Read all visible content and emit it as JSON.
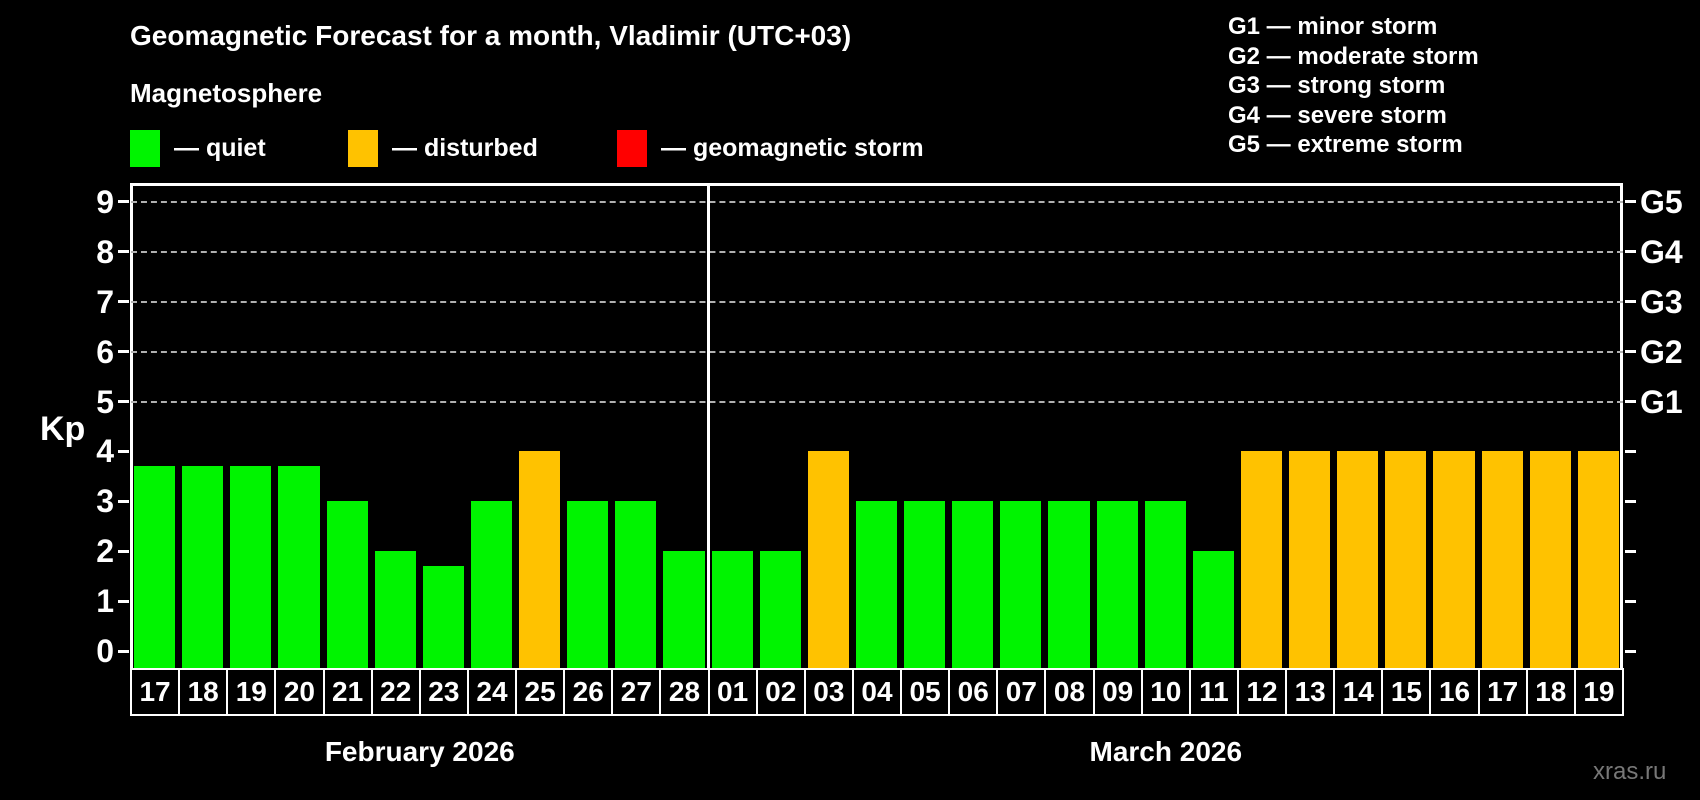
{
  "title": "Geomagnetic Forecast for a month, Vladimir (UTC+03)",
  "subtitle": "Magnetosphere",
  "legend": {
    "items": [
      {
        "status": "quiet",
        "label": "— quiet",
        "color": "#00f400"
      },
      {
        "status": "disturbed",
        "label": "— disturbed",
        "color": "#ffc200"
      },
      {
        "status": "storm",
        "label": "— geomagnetic storm",
        "color": "#ff0000"
      }
    ]
  },
  "g_legend": [
    "G1 — minor storm",
    "G2 — moderate storm",
    "G3 — strong storm",
    "G4 — severe storm",
    "G5 — extreme storm"
  ],
  "watermark": "xras.ru",
  "chart_data": {
    "type": "bar",
    "ylabel": "Kp",
    "ylim": [
      0,
      9
    ],
    "yticks": [
      0,
      1,
      2,
      3,
      4,
      5,
      6,
      7,
      8,
      9
    ],
    "gridlines_at": [
      5,
      6,
      7,
      8,
      9
    ],
    "grid": true,
    "right_axis_labels": [
      {
        "kp": 5,
        "label": "G1"
      },
      {
        "kp": 6,
        "label": "G2"
      },
      {
        "kp": 7,
        "label": "G3"
      },
      {
        "kp": 8,
        "label": "G4"
      },
      {
        "kp": 9,
        "label": "G5"
      }
    ],
    "colors": {
      "quiet": "#00f400",
      "disturbed": "#ffc200",
      "storm": "#ff0000"
    },
    "months": [
      {
        "label": "February 2026",
        "days": [
          {
            "date": "17",
            "kp": 3.7,
            "status": "quiet"
          },
          {
            "date": "18",
            "kp": 3.7,
            "status": "quiet"
          },
          {
            "date": "19",
            "kp": 3.7,
            "status": "quiet"
          },
          {
            "date": "20",
            "kp": 3.7,
            "status": "quiet"
          },
          {
            "date": "21",
            "kp": 3.0,
            "status": "quiet"
          },
          {
            "date": "22",
            "kp": 2.0,
            "status": "quiet"
          },
          {
            "date": "23",
            "kp": 1.7,
            "status": "quiet"
          },
          {
            "date": "24",
            "kp": 3.0,
            "status": "quiet"
          },
          {
            "date": "25",
            "kp": 4.0,
            "status": "disturbed"
          },
          {
            "date": "26",
            "kp": 3.0,
            "status": "quiet"
          },
          {
            "date": "27",
            "kp": 3.0,
            "status": "quiet"
          },
          {
            "date": "28",
            "kp": 2.0,
            "status": "quiet"
          }
        ]
      },
      {
        "label": "March 2026",
        "days": [
          {
            "date": "01",
            "kp": 2.0,
            "status": "quiet"
          },
          {
            "date": "02",
            "kp": 2.0,
            "status": "quiet"
          },
          {
            "date": "03",
            "kp": 4.0,
            "status": "disturbed"
          },
          {
            "date": "04",
            "kp": 3.0,
            "status": "quiet"
          },
          {
            "date": "05",
            "kp": 3.0,
            "status": "quiet"
          },
          {
            "date": "06",
            "kp": 3.0,
            "status": "quiet"
          },
          {
            "date": "07",
            "kp": 3.0,
            "status": "quiet"
          },
          {
            "date": "08",
            "kp": 3.0,
            "status": "quiet"
          },
          {
            "date": "09",
            "kp": 3.0,
            "status": "quiet"
          },
          {
            "date": "10",
            "kp": 3.0,
            "status": "quiet"
          },
          {
            "date": "11",
            "kp": 2.0,
            "status": "quiet"
          },
          {
            "date": "12",
            "kp": 4.0,
            "status": "disturbed"
          },
          {
            "date": "13",
            "kp": 4.0,
            "status": "disturbed"
          },
          {
            "date": "14",
            "kp": 4.0,
            "status": "disturbed"
          },
          {
            "date": "15",
            "kp": 4.0,
            "status": "disturbed"
          },
          {
            "date": "16",
            "kp": 4.0,
            "status": "disturbed"
          },
          {
            "date": "17",
            "kp": 4.0,
            "status": "disturbed"
          },
          {
            "date": "18",
            "kp": 4.0,
            "status": "disturbed"
          },
          {
            "date": "19",
            "kp": 4.0,
            "status": "disturbed"
          }
        ]
      }
    ]
  }
}
